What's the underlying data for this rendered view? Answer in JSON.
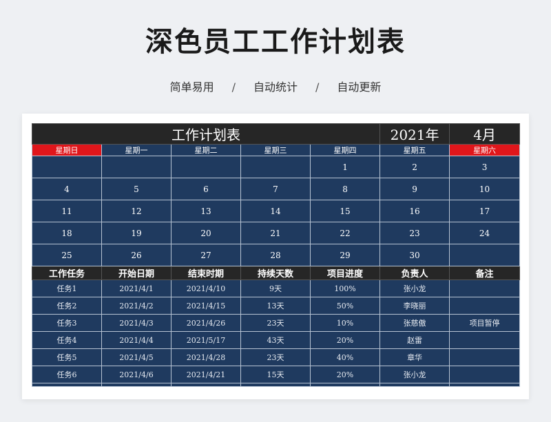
{
  "header": {
    "title": "深色员工工作计划表",
    "tags": [
      "简单易用",
      "自动统计",
      "自动更新"
    ],
    "separator": "/"
  },
  "sheet": {
    "title": "工作计划表",
    "year": "2021年",
    "month": "4月",
    "weekdays": [
      "星期日",
      "星期一",
      "星期二",
      "星期三",
      "星期四",
      "星期五",
      "星期六"
    ],
    "calendar": [
      [
        "",
        "",
        "",
        "",
        "1",
        "2",
        "3"
      ],
      [
        "4",
        "5",
        "6",
        "7",
        "8",
        "9",
        "10"
      ],
      [
        "11",
        "12",
        "13",
        "14",
        "15",
        "16",
        "17"
      ],
      [
        "18",
        "19",
        "20",
        "21",
        "22",
        "23",
        "24"
      ],
      [
        "25",
        "26",
        "27",
        "28",
        "29",
        "30",
        ""
      ]
    ],
    "columns": [
      "工作任务",
      "开始日期",
      "结束时期",
      "持续天数",
      "项目进度",
      "负责人",
      "备注"
    ],
    "tasks": [
      [
        "任务1",
        "2021/4/1",
        "2021/4/10",
        "9天",
        "100%",
        "张小龙",
        ""
      ],
      [
        "任务2",
        "2021/4/2",
        "2021/4/15",
        "13天",
        "50%",
        "李晓丽",
        ""
      ],
      [
        "任务3",
        "2021/4/3",
        "2021/4/26",
        "23天",
        "10%",
        "张慈傲",
        "项目暂停"
      ],
      [
        "任务4",
        "2021/4/4",
        "2021/5/17",
        "43天",
        "20%",
        "赵雷",
        ""
      ],
      [
        "任务5",
        "2021/4/5",
        "2021/4/28",
        "23天",
        "40%",
        "章华",
        ""
      ],
      [
        "任务6",
        "2021/4/6",
        "2021/4/21",
        "15天",
        "20%",
        "张小龙",
        ""
      ]
    ]
  }
}
